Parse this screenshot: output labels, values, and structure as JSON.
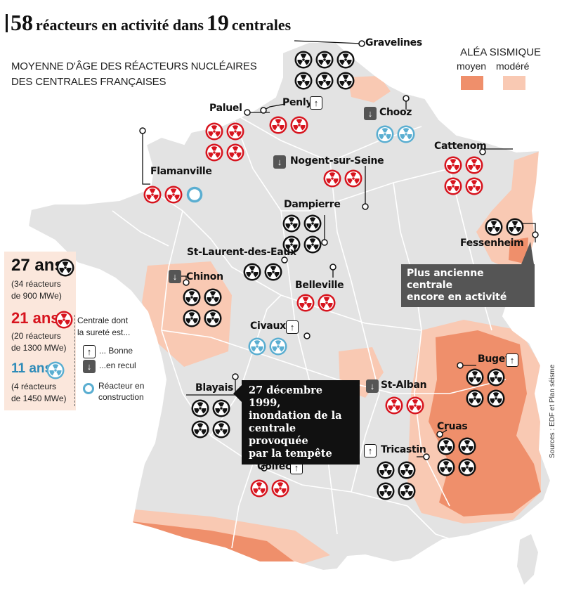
{
  "title": {
    "n_reactors": "58",
    "part1": "réacteurs en activité dans",
    "n_plants": "19",
    "part2": "centrales"
  },
  "subtitle": {
    "line1": "MOYENNE D'ÂGE DES RÉACTEURS NUCLÉAIRES",
    "line2": "DES CENTRALES FRANÇAISES"
  },
  "seismic": {
    "title": "ALÉA SISMIQUE",
    "moyen": "moyen",
    "modere": "modéré",
    "colors": {
      "moyen": "#ef8f6b",
      "modere": "#f9c9b3"
    }
  },
  "colors": {
    "old": "#111111",
    "mid": "#d7141e",
    "young": "#5aaed1",
    "map_fill": "#e3e3e3",
    "border": "#ffffff"
  },
  "legend": {
    "a27": "27 ans",
    "a27_note1": "(34 réacteurs",
    "a27_note2": "de 900 MWe)",
    "a21": "21 ans",
    "a21_note1": "(20 réacteurs",
    "a21_note2": "de 1300 MWe)",
    "a11": "11 ans",
    "a11_note1": "(4 réacteurs",
    "a11_note2": "de 1450 MWe)",
    "safety1": "Centrale dont",
    "safety2": "la sureté est...",
    "good": "... Bonne",
    "bad": "...en recul",
    "construction1": "Réacteur en",
    "construction2": "construction"
  },
  "plants": [
    {
      "name": "Gravelines",
      "type": "old",
      "count": 6,
      "trend": null
    },
    {
      "name": "Penly",
      "type": "mid",
      "count": 2,
      "trend": "up"
    },
    {
      "name": "Paluel",
      "type": "mid",
      "count": 4,
      "trend": null
    },
    {
      "name": "Chooz",
      "type": "young",
      "count": 2,
      "trend": "down"
    },
    {
      "name": "Flamanville",
      "type": "mid",
      "count": 2,
      "construction": 1,
      "trend": null
    },
    {
      "name": "Nogent-sur-Seine",
      "type": "mid",
      "count": 2,
      "trend": "down"
    },
    {
      "name": "Cattenom",
      "type": "mid",
      "count": 4,
      "trend": null
    },
    {
      "name": "Dampierre",
      "type": "old",
      "count": 4,
      "trend": null
    },
    {
      "name": "Fessenheim",
      "type": "old",
      "count": 2,
      "trend": null
    },
    {
      "name": "St-Laurent-des-Eaux",
      "type": "old",
      "count": 2,
      "trend": null
    },
    {
      "name": "Chinon",
      "type": "old",
      "count": 4,
      "trend": "down"
    },
    {
      "name": "Belleville",
      "type": "mid",
      "count": 2,
      "trend": null
    },
    {
      "name": "Civaux",
      "type": "young",
      "count": 2,
      "trend": "up"
    },
    {
      "name": "Bugey",
      "type": "old",
      "count": 4,
      "trend": "up"
    },
    {
      "name": "Blayais",
      "type": "old",
      "count": 4,
      "trend": null
    },
    {
      "name": "St-Alban",
      "type": "mid",
      "count": 2,
      "trend": "down"
    },
    {
      "name": "Cruas",
      "type": "old",
      "count": 4,
      "trend": null
    },
    {
      "name": "Tricastin",
      "type": "old",
      "count": 4,
      "trend": "up"
    },
    {
      "name": "Golfech",
      "type": "mid",
      "count": 2,
      "trend": "up"
    }
  ],
  "callouts": {
    "fessenheim1": "Plus ancienne centrale",
    "fessenheim2": "encore en activité",
    "blayais1": "27 décembre 1999,",
    "blayais2": "inondation de la",
    "blayais3": "centrale provoquée",
    "blayais4": "par la tempête"
  },
  "source": "Sources : EDF et Plan séisme"
}
